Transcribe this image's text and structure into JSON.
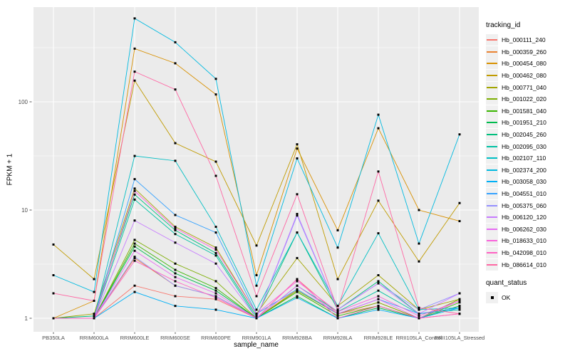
{
  "figure": {
    "xlabel": "sample_name",
    "ylabel": "FPKM + 1"
  },
  "legend": {
    "color_title": "tracking_id",
    "shape_title": "quant_status",
    "shape_items": [
      {
        "label": "OK",
        "marker": "black-square"
      }
    ]
  },
  "panel": {
    "bg": "#EBEBEB",
    "grid_color": "#FFFFFF",
    "tick_color": "#333333",
    "tick_label_color": "#4D4D4D"
  },
  "chart_data": {
    "type": "line",
    "title": "",
    "xlabel": "sample_name",
    "ylabel": "FPKM + 1",
    "y_scale": "log10",
    "ylim": [
      0.75,
      750
    ],
    "y_ticks": [
      1,
      10,
      100
    ],
    "y_tick_labels": [
      "1",
      "10",
      "100"
    ],
    "y_minor_breaks": [
      3.162,
      31.62,
      316.2
    ],
    "grid": true,
    "legend_position": "right",
    "point_marker": "filled-black-square",
    "categories": [
      "PB350LA",
      "RRIM600LA",
      "RRIM600LE",
      "RRIM600SE",
      "RRIM600PE",
      "RRIM901LA",
      "RRIM928BA",
      "RRIM928LA",
      "RRIM928LE",
      "RRII105LA_Control",
      "RRII105LA_Stressed"
    ],
    "series": [
      {
        "name": "Hb_000111_240",
        "color": "#F8766D",
        "values": [
          1.0,
          1.0,
          2.0,
          1.6,
          1.5,
          1.0,
          2.3,
          1.1,
          1.3,
          1.0,
          1.1
        ]
      },
      {
        "name": "Hb_000359_260",
        "color": "#EA8331",
        "values": [
          1.0,
          1.0,
          3.6,
          2.0,
          1.6,
          1.0,
          1.85,
          1.1,
          1.4,
          1.0,
          1.3
        ]
      },
      {
        "name": "Hb_000454_080",
        "color": "#D89000",
        "values": [
          1.0,
          1.45,
          310,
          227,
          117,
          2.5,
          37,
          6.5,
          57,
          10,
          7.9
        ]
      },
      {
        "name": "Hb_000462_080",
        "color": "#C09B00",
        "values": [
          4.8,
          2.3,
          157,
          41.5,
          28,
          4.7,
          40.5,
          2.3,
          12.2,
          3.35,
          11.6
        ]
      },
      {
        "name": "Hb_000771_040",
        "color": "#A3A500",
        "values": [
          1.0,
          1.1,
          15.8,
          7.0,
          4.5,
          1.1,
          3.6,
          1.3,
          2.5,
          1.2,
          1.5
        ]
      },
      {
        "name": "Hb_001022_020",
        "color": "#7CAE00",
        "values": [
          1.0,
          1.0,
          5.3,
          3.2,
          2.2,
          1.0,
          1.8,
          1.1,
          1.4,
          1.0,
          1.5
        ]
      },
      {
        "name": "Hb_001581_040",
        "color": "#39B600",
        "values": [
          1.0,
          1.0,
          4.9,
          2.8,
          1.9,
          1.0,
          1.75,
          1.05,
          1.3,
          1.0,
          1.4
        ]
      },
      {
        "name": "Hb_001951_210",
        "color": "#00BB4E",
        "values": [
          1.0,
          1.0,
          4.6,
          2.6,
          1.8,
          1.0,
          1.6,
          1.0,
          1.25,
          1.0,
          1.3
        ]
      },
      {
        "name": "Hb_002045_260",
        "color": "#00BF7D",
        "values": [
          1.0,
          1.05,
          13.9,
          6.5,
          4.0,
          1.05,
          6.2,
          1.2,
          2.2,
          1.1,
          1.25
        ]
      },
      {
        "name": "Hb_002095_030",
        "color": "#00C1A3",
        "values": [
          1.0,
          1.0,
          12.5,
          6.0,
          3.8,
          1.0,
          2.0,
          1.15,
          1.8,
          1.1,
          1.2
        ]
      },
      {
        "name": "Hb_002107_110",
        "color": "#00BFC4",
        "values": [
          1.0,
          1.0,
          31.6,
          28.5,
          7.0,
          1.2,
          6.2,
          1.3,
          6.1,
          1.2,
          1.25
        ]
      },
      {
        "name": "Hb_002374_200",
        "color": "#00BAE0",
        "values": [
          2.5,
          1.75,
          590,
          355,
          163,
          2.0,
          30,
          4.5,
          76,
          4.9,
          50
        ]
      },
      {
        "name": "Hb_003058_030",
        "color": "#00B0F6",
        "values": [
          1.0,
          1.0,
          1.75,
          1.3,
          1.2,
          1.0,
          1.55,
          1.0,
          1.2,
          1.0,
          1.25
        ]
      },
      {
        "name": "Hb_004551_010",
        "color": "#35A2FF",
        "values": [
          1.0,
          1.0,
          19.3,
          9.0,
          6.2,
          1.1,
          1.85,
          1.1,
          1.5,
          1.1,
          1.25
        ]
      },
      {
        "name": "Hb_005375_060",
        "color": "#9590FF",
        "values": [
          1.0,
          1.0,
          3.7,
          2.0,
          1.6,
          1.0,
          8.9,
          1.2,
          2.1,
          1.2,
          1.7
        ]
      },
      {
        "name": "Hb_006120_120",
        "color": "#C77CFF",
        "values": [
          1.0,
          1.0,
          8.0,
          5.0,
          3.2,
          1.0,
          9.2,
          1.2,
          2.1,
          1.1,
          1.7
        ]
      },
      {
        "name": "Hb_006262_030",
        "color": "#E76BF3",
        "values": [
          1.0,
          1.0,
          4.2,
          2.4,
          1.7,
          1.0,
          2.0,
          1.1,
          1.5,
          1.0,
          1.45
        ]
      },
      {
        "name": "Hb_018633_010",
        "color": "#FA62DB",
        "values": [
          1.0,
          1.0,
          15.0,
          6.8,
          4.3,
          1.1,
          2.2,
          1.15,
          1.6,
          1.05,
          1.45
        ]
      },
      {
        "name": "Hb_042098_010",
        "color": "#FF61C3",
        "values": [
          1.0,
          1.0,
          3.4,
          2.2,
          1.55,
          1.0,
          2.3,
          1.0,
          1.3,
          1.0,
          1.1
        ]
      },
      {
        "name": "Hb_086614_010",
        "color": "#FF67A4",
        "values": [
          1.7,
          1.45,
          190,
          130,
          20.7,
          1.6,
          14,
          1.2,
          22.7,
          1.25,
          1.1
        ]
      }
    ]
  }
}
